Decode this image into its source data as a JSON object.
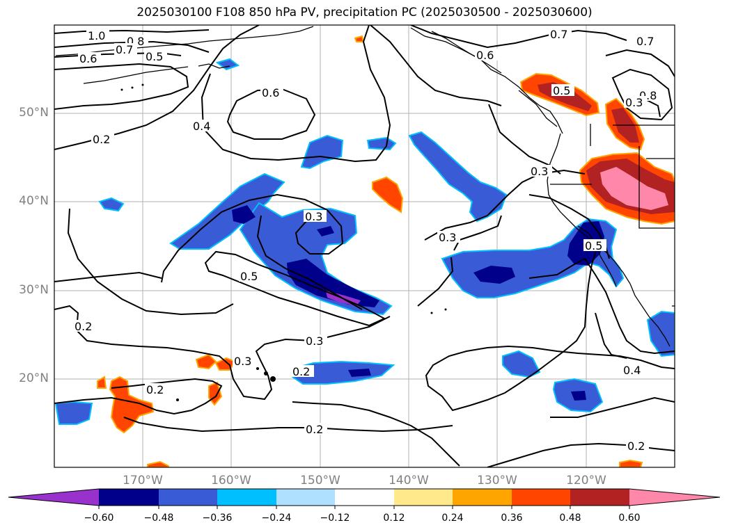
{
  "title": "2025030100 F108 850 hPa PV, precipitation PC (2025030500 - 2025030600)",
  "lat_labels": [
    "50°N",
    "40°N",
    "30°N",
    "20°N"
  ],
  "lon_labels": [
    "170°W",
    "160°W",
    "150°W",
    "140°W",
    "130°W",
    "120°W"
  ],
  "contour_labels": [
    "1.0",
    "0.8",
    "0.7",
    "0.6",
    "0.5",
    "0.6",
    "0.4",
    "0.2",
    "0.3",
    "0.3",
    "0.5",
    "0.3",
    "0.3",
    "0.2",
    "0.2",
    "0.3",
    "0.2",
    "0.2",
    "0.7",
    "0.6",
    "0.5",
    "0.7",
    "0.8",
    "0.3",
    "0.5",
    "0.4",
    "0.2"
  ],
  "colorbar": {
    "ticks": [
      "−0.60",
      "−0.48",
      "−0.36",
      "−0.24",
      "−0.12",
      "0.12",
      "0.24",
      "0.36",
      "0.48",
      "0.60"
    ],
    "colors": [
      "#9932cc",
      "#00008b",
      "#3a5bd6",
      "#00bfff",
      "#b0e0ff",
      "#ffffff",
      "#ffe98a",
      "#ffa500",
      "#ff4500",
      "#b22222",
      "#ff88aa"
    ]
  },
  "map": {
    "projection": "lat-lon",
    "extent": {
      "lon": [
        -180,
        -110
      ],
      "lat": [
        10,
        60
      ]
    },
    "gridlines": true,
    "fields": [
      "850 hPa PV (contours)",
      "precipitation PC (shaded)"
    ]
  }
}
